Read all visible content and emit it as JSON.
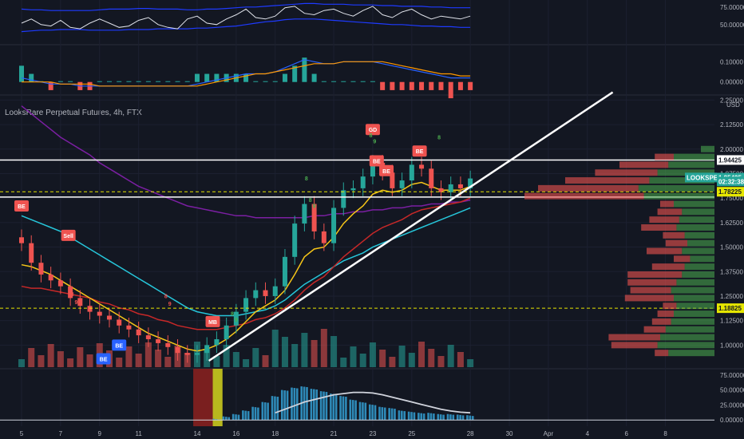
{
  "title": "LooksRare Perpetual Futures, 4h, FTX",
  "colors": {
    "up": "#26a69a",
    "down": "#ef5350",
    "bg": "#131722",
    "ema_fast": "#f5c518",
    "ema_mid": "#c62828",
    "ema_teal": "#26c6da",
    "ema_purple": "#7b1fa2",
    "ema_blue": "#1e40ff",
    "line_white": "#ffffff",
    "yellow_dash": "#e6e600"
  },
  "price_axis": {
    "unit": "USD",
    "ticks": [
      "2.25000",
      "2.12500",
      "2.00000",
      "1.87500",
      "1.75000",
      "1.62500",
      "1.50000",
      "1.37500",
      "1.25000",
      "1.12500",
      "1.00000"
    ],
    "tick_values": [
      2.25,
      2.125,
      2.0,
      1.875,
      1.75,
      1.625,
      1.5,
      1.375,
      1.25,
      1.125,
      1.0
    ],
    "range": [
      0.92,
      2.28
    ]
  },
  "price_tags": [
    {
      "label": "1.94425",
      "value": 1.94425,
      "style": "white"
    },
    {
      "label": "LOOKSPERP",
      "value": 1.855,
      "style": "teal-label"
    },
    {
      "label": "1.85425",
      "value": 1.85425,
      "style": "teal"
    },
    {
      "label": "02:32:38",
      "value": 1.835,
      "style": "teal-sub"
    },
    {
      "label": "1.78225",
      "value": 1.78225,
      "style": "yellow"
    },
    {
      "label": "1.18825",
      "value": 1.18825,
      "style": "yellow"
    }
  ],
  "rsi_axis": {
    "ticks": [
      "75.00000",
      "50.00000"
    ],
    "tick_values": [
      75,
      50
    ],
    "range": [
      35,
      85
    ]
  },
  "macd_axis": {
    "ticks": [
      "0.10000",
      "0.00000"
    ],
    "tick_values": [
      0.1,
      0.0
    ],
    "range": [
      -0.06,
      0.16
    ]
  },
  "vol_axis": {
    "ticks": [
      "75.00000",
      "50.00000",
      "25.00000",
      "0.00000"
    ],
    "tick_values": [
      75,
      50,
      25,
      0
    ],
    "range": [
      -5,
      80
    ]
  },
  "x_axis": {
    "labels": [
      "5",
      "7",
      "9",
      "11",
      "14",
      "16",
      "18",
      "21",
      "23",
      "25",
      "28",
      "30",
      "Apr",
      "4",
      "6",
      "8"
    ],
    "positions": [
      5,
      7,
      9,
      11,
      14,
      16,
      18,
      21,
      23,
      25,
      28,
      30,
      32,
      34,
      36,
      38
    ]
  },
  "chart_data": {
    "type": "line",
    "x": [
      5,
      5.5,
      6,
      6.5,
      7,
      7.5,
      8,
      8.5,
      9,
      9.5,
      10,
      10.5,
      11,
      11.5,
      12,
      12.5,
      13,
      13.5,
      14,
      14.5,
      15,
      15.5,
      16,
      16.5,
      17,
      17.5,
      18,
      18.5,
      19,
      19.5,
      20,
      20.5,
      21,
      21.5,
      22,
      22.5,
      23,
      23.5,
      24,
      24.5,
      25,
      25.5,
      26,
      26.5,
      27,
      27.5,
      28
    ],
    "series": [],
    "price_close": [
      1.52,
      1.42,
      1.36,
      1.33,
      1.3,
      1.24,
      1.2,
      1.17,
      1.15,
      1.13,
      1.1,
      1.08,
      1.05,
      1.03,
      1.01,
      0.99,
      0.96,
      0.95,
      0.96,
      1.0,
      1.03,
      1.1,
      1.17,
      1.24,
      1.28,
      1.25,
      1.3,
      1.45,
      1.62,
      1.72,
      1.58,
      1.52,
      1.7,
      1.79,
      1.8,
      1.86,
      1.93,
      1.88,
      1.8,
      1.84,
      1.92,
      1.9,
      1.8,
      1.78,
      1.82,
      1.8,
      1.85
    ],
    "ema_fast": [
      1.41,
      1.4,
      1.38,
      1.36,
      1.33,
      1.3,
      1.27,
      1.24,
      1.21,
      1.18,
      1.15,
      1.12,
      1.09,
      1.06,
      1.04,
      1.02,
      1.0,
      0.98,
      0.97,
      0.98,
      1.0,
      1.03,
      1.07,
      1.12,
      1.17,
      1.2,
      1.23,
      1.28,
      1.36,
      1.45,
      1.49,
      1.5,
      1.55,
      1.62,
      1.67,
      1.71,
      1.77,
      1.79,
      1.78,
      1.79,
      1.82,
      1.83,
      1.81,
      1.79,
      1.79,
      1.79,
      1.81
    ],
    "ema_mid": [
      1.3,
      1.29,
      1.29,
      1.28,
      1.27,
      1.26,
      1.25,
      1.24,
      1.22,
      1.21,
      1.19,
      1.18,
      1.16,
      1.15,
      1.13,
      1.12,
      1.1,
      1.09,
      1.08,
      1.08,
      1.08,
      1.09,
      1.1,
      1.11,
      1.13,
      1.14,
      1.16,
      1.19,
      1.23,
      1.28,
      1.32,
      1.35,
      1.4,
      1.45,
      1.49,
      1.53,
      1.57,
      1.6,
      1.62,
      1.64,
      1.67,
      1.69,
      1.7,
      1.71,
      1.72,
      1.73,
      1.75
    ],
    "ema_teal": [
      1.66,
      1.64,
      1.62,
      1.6,
      1.58,
      1.55,
      1.52,
      1.49,
      1.46,
      1.43,
      1.4,
      1.37,
      1.34,
      1.31,
      1.28,
      1.25,
      1.22,
      1.19,
      1.17,
      1.16,
      1.15,
      1.15,
      1.15,
      1.16,
      1.17,
      1.18,
      1.2,
      1.23,
      1.27,
      1.31,
      1.34,
      1.37,
      1.4,
      1.43,
      1.45,
      1.47,
      1.5,
      1.52,
      1.54,
      1.56,
      1.58,
      1.6,
      1.62,
      1.64,
      1.66,
      1.68,
      1.7
    ],
    "ema_purple": [
      2.22,
      2.18,
      2.14,
      2.1,
      2.06,
      2.03,
      2.0,
      1.97,
      1.93,
      1.9,
      1.87,
      1.84,
      1.81,
      1.79,
      1.77,
      1.75,
      1.73,
      1.71,
      1.7,
      1.69,
      1.68,
      1.67,
      1.66,
      1.66,
      1.65,
      1.65,
      1.65,
      1.65,
      1.65,
      1.65,
      1.66,
      1.66,
      1.67,
      1.67,
      1.68,
      1.68,
      1.69,
      1.69,
      1.7,
      1.7,
      1.71,
      1.71,
      1.72,
      1.72,
      1.73,
      1.73,
      1.74
    ],
    "trendline": {
      "x": [
        14.6,
        35.3
      ],
      "y": [
        0.92,
        2.29
      ]
    },
    "resistance": 1.94425,
    "support_lines": [
      1.78225,
      1.18825
    ],
    "rsi": [
      52,
      58,
      50,
      48,
      56,
      46,
      44,
      52,
      58,
      52,
      46,
      48,
      56,
      60,
      50,
      46,
      44,
      58,
      62,
      52,
      50,
      58,
      64,
      72,
      60,
      58,
      62,
      74,
      76,
      66,
      64,
      70,
      72,
      66,
      62,
      70,
      76,
      64,
      60,
      68,
      72,
      64,
      58,
      62,
      60,
      58,
      62
    ],
    "rsi_upper": [
      72,
      71,
      71,
      70,
      70,
      70,
      70,
      70,
      71,
      72,
      72,
      72,
      73,
      73,
      72,
      72,
      72,
      71,
      71,
      72,
      72,
      73,
      74,
      75,
      75,
      76,
      77,
      78,
      79,
      80,
      80,
      79,
      79,
      79,
      78,
      78,
      78,
      77,
      77,
      76,
      76,
      76,
      75,
      75,
      74,
      74,
      74
    ],
    "rsi_lower": [
      40,
      41,
      42,
      42,
      43,
      43,
      43,
      42,
      42,
      42,
      42,
      43,
      43,
      43,
      44,
      44,
      44,
      44,
      45,
      45,
      46,
      47,
      48,
      50,
      52,
      54,
      55,
      57,
      58,
      58,
      58,
      57,
      56,
      55,
      54,
      53,
      52,
      51,
      50,
      50,
      49,
      48,
      48,
      47,
      47,
      46,
      46
    ],
    "macd": [
      0.02,
      0.01,
      0.0,
      -0.01,
      -0.01,
      -0.01,
      -0.02,
      -0.02,
      -0.02,
      -0.02,
      -0.02,
      -0.02,
      -0.02,
      -0.02,
      -0.02,
      -0.02,
      -0.02,
      -0.02,
      -0.01,
      0.0,
      0.01,
      0.02,
      0.03,
      0.04,
      0.04,
      0.04,
      0.05,
      0.07,
      0.09,
      0.11,
      0.1,
      0.09,
      0.09,
      0.1,
      0.1,
      0.1,
      0.1,
      0.09,
      0.08,
      0.07,
      0.06,
      0.05,
      0.04,
      0.03,
      0.02,
      0.02,
      0.02
    ],
    "macd_signal": [
      0.0,
      0.0,
      0.0,
      0.0,
      -0.01,
      -0.01,
      -0.01,
      -0.01,
      -0.02,
      -0.02,
      -0.02,
      -0.02,
      -0.02,
      -0.02,
      -0.02,
      -0.02,
      -0.02,
      -0.02,
      -0.02,
      -0.01,
      0.0,
      0.01,
      0.02,
      0.03,
      0.04,
      0.04,
      0.05,
      0.06,
      0.07,
      0.08,
      0.09,
      0.09,
      0.09,
      0.1,
      0.1,
      0.1,
      0.1,
      0.1,
      0.09,
      0.08,
      0.07,
      0.06,
      0.05,
      0.04,
      0.04,
      0.03,
      0.03
    ],
    "volume_osc": [
      0,
      0,
      0,
      0,
      0,
      0,
      0,
      0,
      0,
      0,
      0,
      0,
      0,
      0,
      0,
      0,
      0,
      0,
      0,
      0,
      2,
      6,
      10,
      16,
      22,
      30,
      40,
      50,
      54,
      56,
      52,
      48,
      44,
      40,
      34,
      30,
      26,
      22,
      20,
      16,
      14,
      12,
      12,
      10,
      10,
      9,
      8
    ],
    "volume_osc_ma": [
      null,
      null,
      null,
      null,
      null,
      null,
      null,
      null,
      null,
      null,
      null,
      null,
      null,
      null,
      null,
      null,
      null,
      null,
      null,
      null,
      null,
      null,
      null,
      null,
      null,
      null,
      12,
      18,
      24,
      30,
      34,
      38,
      42,
      44,
      46,
      46,
      45,
      42,
      38,
      34,
      30,
      26,
      22,
      18,
      15,
      13,
      12
    ],
    "signals": [
      {
        "label": "BE",
        "x": 5.0,
        "y": 1.71,
        "color": "#ef5350",
        "dir": "down"
      },
      {
        "label": "Sell",
        "x": 7.4,
        "y": 1.56,
        "color": "#ef5350",
        "dir": "down"
      },
      {
        "label": "BE",
        "x": 10.0,
        "y": 1.0,
        "color": "#2962ff",
        "dir": "up"
      },
      {
        "label": "BE",
        "x": 9.2,
        "y": 0.93,
        "color": "#2962ff",
        "dir": "up"
      },
      {
        "label": "MB",
        "x": 14.8,
        "y": 1.12,
        "color": "#ef5350",
        "dir": "down"
      },
      {
        "label": "GD",
        "x": 23.0,
        "y": 2.1,
        "color": "#ef5350",
        "dir": "down"
      },
      {
        "label": "BE",
        "x": 23.2,
        "y": 1.94,
        "color": "#ef5350",
        "dir": "down"
      },
      {
        "label": "BE",
        "x": 23.7,
        "y": 1.89,
        "color": "#ef5350",
        "dir": "down"
      },
      {
        "label": "BE",
        "x": 25.4,
        "y": 1.99,
        "color": "#ef5350",
        "dir": "down"
      }
    ],
    "counts": [
      {
        "label": "8",
        "x": 19.6,
        "y": 1.84,
        "color": "#4caf50"
      },
      {
        "label": "8",
        "x": 19.8,
        "y": 1.73,
        "color": "#4caf50"
      },
      {
        "label": "9",
        "x": 20.0,
        "y": 1.7,
        "color": "#4caf50"
      },
      {
        "label": "8",
        "x": 22.9,
        "y": 2.06,
        "color": "#4caf50"
      },
      {
        "label": "9",
        "x": 23.1,
        "y": 2.03,
        "color": "#4caf50"
      },
      {
        "label": "8",
        "x": 26.4,
        "y": 2.05,
        "color": "#4caf50"
      },
      {
        "label": "8",
        "x": 7.6,
        "y": 1.25,
        "color": "#ef5350"
      },
      {
        "label": "9",
        "x": 7.8,
        "y": 1.21,
        "color": "#ef5350"
      },
      {
        "label": "8",
        "x": 12.4,
        "y": 1.24,
        "color": "#ef5350"
      },
      {
        "label": "9",
        "x": 12.6,
        "y": 1.2,
        "color": "#ef5350"
      },
      {
        "label": "8",
        "x": 15.8,
        "y": 1.15,
        "color": "#4caf50"
      },
      {
        "label": "9",
        "x": 16.0,
        "y": 1.12,
        "color": "#4caf50"
      }
    ],
    "volume_profile": [
      {
        "price": 2.0,
        "buy": 0.1,
        "sell": 0.0
      },
      {
        "price": 1.96,
        "buy": 0.3,
        "sell": 0.14
      },
      {
        "price": 1.92,
        "buy": 0.34,
        "sell": 0.36
      },
      {
        "price": 1.88,
        "buy": 0.42,
        "sell": 0.46
      },
      {
        "price": 1.84,
        "buy": 0.48,
        "sell": 0.62
      },
      {
        "price": 1.8,
        "buy": 0.56,
        "sell": 0.74
      },
      {
        "price": 1.76,
        "buy": 0.52,
        "sell": 0.88
      },
      {
        "price": 1.72,
        "buy": 0.3,
        "sell": 0.1
      },
      {
        "price": 1.68,
        "buy": 0.24,
        "sell": 0.18
      },
      {
        "price": 1.64,
        "buy": 0.26,
        "sell": 0.22
      },
      {
        "price": 1.6,
        "buy": 0.28,
        "sell": 0.26
      },
      {
        "price": 1.56,
        "buy": 0.22,
        "sell": 0.16
      },
      {
        "price": 1.52,
        "buy": 0.2,
        "sell": 0.16
      },
      {
        "price": 1.48,
        "buy": 0.24,
        "sell": 0.26
      },
      {
        "price": 1.44,
        "buy": 0.18,
        "sell": 0.12
      },
      {
        "price": 1.4,
        "buy": 0.22,
        "sell": 0.24
      },
      {
        "price": 1.36,
        "buy": 0.24,
        "sell": 0.4
      },
      {
        "price": 1.32,
        "buy": 0.28,
        "sell": 0.36
      },
      {
        "price": 1.28,
        "buy": 0.32,
        "sell": 0.3
      },
      {
        "price": 1.24,
        "buy": 0.3,
        "sell": 0.36
      },
      {
        "price": 1.2,
        "buy": 0.28,
        "sell": 0.1
      },
      {
        "price": 1.16,
        "buy": 0.3,
        "sell": 0.12
      },
      {
        "price": 1.12,
        "buy": 0.32,
        "sell": 0.14
      },
      {
        "price": 1.08,
        "buy": 0.36,
        "sell": 0.16
      },
      {
        "price": 1.04,
        "buy": 0.4,
        "sell": 0.38
      },
      {
        "price": 1.0,
        "buy": 0.42,
        "sell": 0.34
      },
      {
        "price": 0.96,
        "buy": 0.34,
        "sell": 0.1
      }
    ]
  }
}
